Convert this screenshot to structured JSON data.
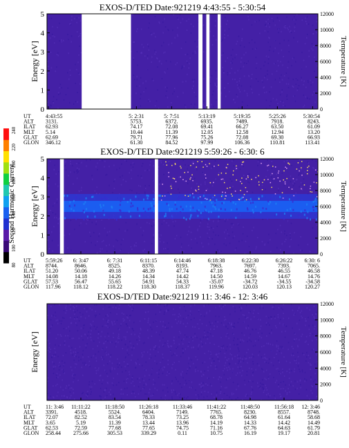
{
  "colorbar": {
    "label": "Second Harmonic Current",
    "ticks": [
      "80",
      "100",
      "120",
      "140",
      "160",
      "180",
      "200",
      "220",
      "240"
    ],
    "colors": [
      "#000000",
      "#3a0a78",
      "#5a1aa8",
      "#2030d0",
      "#1a60f0",
      "#10a0f0",
      "#20c8b0",
      "#10d040",
      "#a0e010",
      "#ffe000",
      "#ff8000",
      "#ff1010"
    ]
  },
  "row_labels": [
    "UT",
    "ALT",
    "ILAT",
    "MLT",
    "GLAT",
    "GLON"
  ],
  "chart_data": [
    {
      "type": "heatmap",
      "title": "EXOS-D/TED",
      "date": "Date:921219",
      "time_range": "4:43:55 - 5:30:54",
      "ylabel": "Energy [eV]",
      "ylabel_right": "Temperature [K]",
      "ylim": [
        0,
        5
      ],
      "yticks": [
        "0",
        "1",
        "2",
        "3",
        "4",
        "5"
      ],
      "y2lim": [
        0,
        12000
      ],
      "y2ticks": [
        "0",
        "2000",
        "4000",
        "6000",
        "8000",
        "10000",
        "12000"
      ],
      "gaps": [
        [
          0.128,
          0.31
        ],
        [
          0.559,
          0.574
        ],
        [
          0.588,
          0.6
        ],
        [
          0.63,
          0.641
        ]
      ],
      "band": null,
      "dots": false,
      "columns": [
        {
          "UT": "4:43:55",
          "ALT": "3131.",
          "ILAT": "62.93",
          "MLT": "5.14",
          "GLAT": "62.69",
          "GLON": "346.12"
        },
        {
          "UT": "5: 2:31",
          "ALT": "5753.",
          "ILAT": "74.17",
          "MLT": "10.44",
          "GLAT": "79.71",
          "GLON": "61.30"
        },
        {
          "UT": "5: 7:51",
          "ALT": "6372.",
          "ILAT": "72.08",
          "MLT": "11.39",
          "GLAT": "77.96",
          "GLON": "84.52"
        },
        {
          "UT": "5:13:19",
          "ALT": "6935.",
          "ILAT": "69.41",
          "MLT": "12.05",
          "GLAT": "75.26",
          "GLON": "97.99"
        },
        {
          "UT": "5:19:35",
          "ALT": "7489.",
          "ILAT": "66.27",
          "MLT": "12.58",
          "GLAT": "72.08",
          "GLON": "106.36"
        },
        {
          "UT": "5:25:26",
          "ALT": "7918.",
          "ILAT": "63.50",
          "MLT": "12.94",
          "GLAT": "69.30",
          "GLON": "110.81"
        },
        {
          "UT": "5:30:54",
          "ALT": "8243.",
          "ILAT": "61.09",
          "MLT": "13.20",
          "GLAT": "66.93",
          "GLON": "113.41"
        }
      ]
    },
    {
      "type": "heatmap",
      "title": "EXOS-D/TED",
      "date": "Date:921219",
      "time_range": "5:59:26 - 6:30: 6",
      "ylabel": "Energy [eV]",
      "ylabel_right": "Temperature [K]",
      "ylim": [
        0,
        5
      ],
      "yticks": [
        "0",
        "1",
        "2",
        "3",
        "4",
        "5"
      ],
      "y2lim": [
        0,
        12000
      ],
      "y2ticks": [
        "0",
        "2000",
        "4000",
        "6000",
        "8000",
        "10000",
        "12000"
      ],
      "gaps": [
        [
          0.048,
          0.062
        ],
        [
          0.398,
          0.41
        ]
      ],
      "band": {
        "center": 2.5,
        "width": 1.3
      },
      "dots": true,
      "columns": [
        {
          "UT": "5:59:26",
          "ALT": "8744.",
          "ILAT": "51.20",
          "MLT": "14.08",
          "GLAT": "57.53",
          "GLON": "117.96"
        },
        {
          "UT": "6: 3:47",
          "ALT": "8646.",
          "ILAT": "50.06",
          "MLT": "14.18",
          "GLAT": "56.47",
          "GLON": "118.12"
        },
        {
          "UT": "6: 7:31",
          "ALT": "8525.",
          "ILAT": "49.18",
          "MLT": "14.26",
          "GLAT": "55.65",
          "GLON": "118.22"
        },
        {
          "UT": "6:11:15",
          "ALT": "8370.",
          "ILAT": "48.39",
          "MLT": "14.34",
          "GLAT": "54.91",
          "GLON": "118.30"
        },
        {
          "UT": "6:14:46",
          "ALT": "8193.",
          "ILAT": "47.74",
          "MLT": "14.42",
          "GLAT": "54.33",
          "GLON": "118.37"
        },
        {
          "UT": "6:18:38",
          "ALT": "7963.",
          "ILAT": "47.18",
          "MLT": "14.50",
          "GLAT": "-35.07",
          "GLON": "119.96"
        },
        {
          "UT": "6:22:30",
          "ALT": "7697.",
          "ILAT": "46.76",
          "MLT": "14.59",
          "GLAT": "-34.72",
          "GLON": "120.03"
        },
        {
          "UT": "6:26:22",
          "ALT": "7393.",
          "ILAT": "46.55",
          "MLT": "14.67",
          "GLAT": "-34.55",
          "GLON": "120.13"
        },
        {
          "UT": "6:30: 6",
          "ALT": "7065.",
          "ILAT": "46.58",
          "MLT": "14.76",
          "GLAT": "-34.58",
          "GLON": "120.27"
        }
      ]
    },
    {
      "type": "heatmap",
      "title": "EXOS-D/TED",
      "date": "Date:921219",
      "time_range": "11: 3:46 - 12: 3:46",
      "ylabel": "Energy [eV]",
      "ylabel_right": "Temperature [K]",
      "ylim": [
        0,
        5
      ],
      "yticks": [],
      "y2lim": [
        0,
        12000
      ],
      "y2ticks": [
        "0",
        "2000",
        "4000",
        "6000",
        "8000",
        "10000",
        "12000"
      ],
      "gaps": [],
      "band": null,
      "dots": false,
      "columns": [
        {
          "UT": "11: 3:46",
          "ALT": "3391.",
          "ILAT": "72.07",
          "MLT": "3.65",
          "GLAT": "62.53",
          "GLON": "258.44"
        },
        {
          "UT": "11:11:22",
          "ALT": "4518.",
          "ILAT": "82.52",
          "MLT": "5.19",
          "GLAT": "72.59",
          "GLON": "275.66"
        },
        {
          "UT": "11:18:50",
          "ALT": "5524.",
          "ILAT": "83.54",
          "MLT": "11.39",
          "GLAT": "77.68",
          "GLON": "305.53"
        },
        {
          "UT": "11:26:18",
          "ALT": "6404.",
          "ILAT": "78.33",
          "MLT": "13.44",
          "GLAT": "77.65",
          "GLON": "339.29"
        },
        {
          "UT": "11:33:46",
          "ALT": "7149.",
          "ILAT": "73.25",
          "MLT": "13.96",
          "GLAT": "74.75",
          "GLON": "0.11"
        },
        {
          "UT": "11:41:22",
          "ALT": "7765.",
          "ILAT": "68.78",
          "MLT": "14.19",
          "GLAT": "71.16",
          "GLON": "10.75"
        },
        {
          "UT": "11:48:50",
          "ALT": "8230.",
          "ILAT": "64.98",
          "MLT": "14.33",
          "GLAT": "67.76",
          "GLON": "16.19"
        },
        {
          "UT": "11:56:18",
          "ALT": "8557.",
          "ILAT": "61.64",
          "MLT": "14.42",
          "GLAT": "64.63",
          "GLON": "19.17"
        },
        {
          "UT": "12: 3:46",
          "ALT": "8748.",
          "ILAT": "58.68",
          "MLT": "14.49",
          "GLAT": "61.79",
          "GLON": "20.81"
        }
      ]
    }
  ]
}
